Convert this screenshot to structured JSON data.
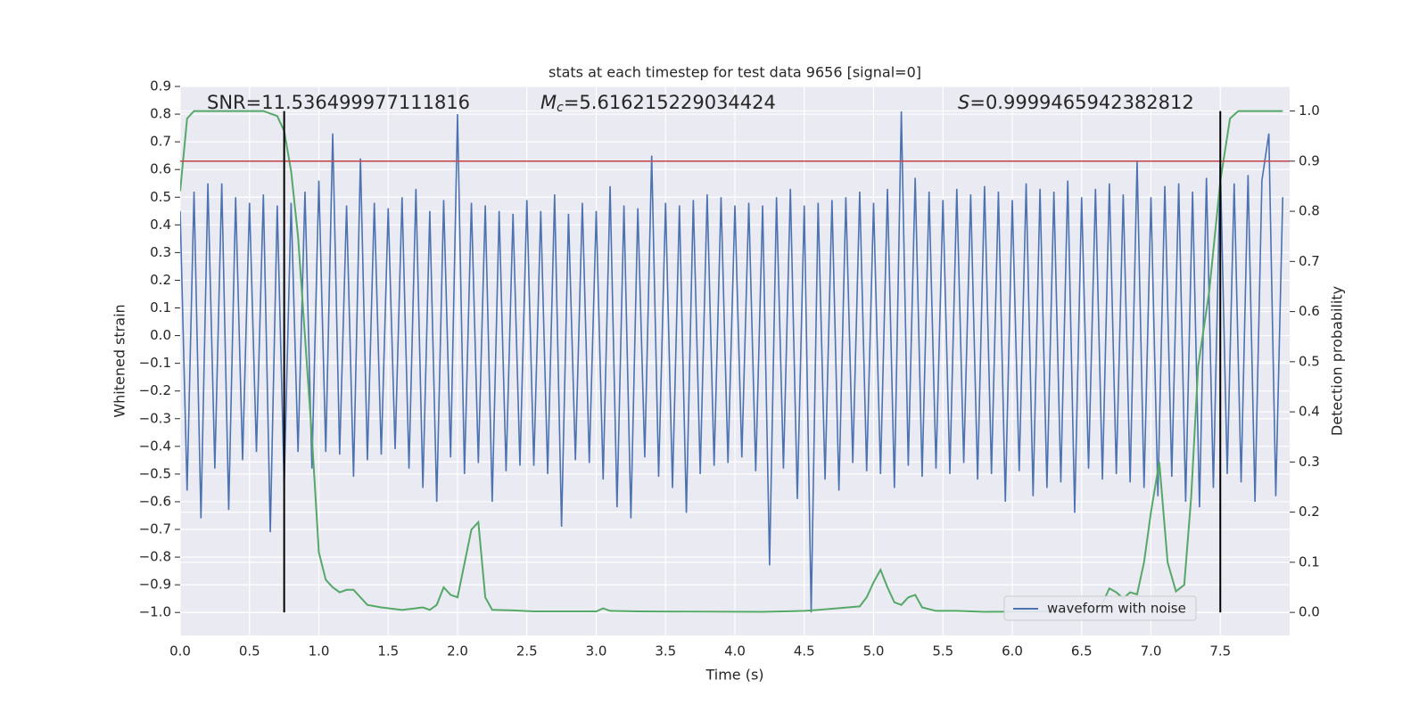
{
  "chart_data": {
    "type": "line",
    "title": "stats at each timestep for test data 9656 [signal=0]",
    "x_label": "Time (s)",
    "y_label": "Whitened strain",
    "y2_label": "Detection probability",
    "xlim": [
      0,
      8
    ],
    "ylim": [
      -1.083,
      0.9
    ],
    "y2lim": [
      -0.046,
      1.049
    ],
    "xticks": [
      {
        "value": 0,
        "label": "0.0"
      },
      0.5,
      {
        "value": 1,
        "label": "1.0"
      },
      1.5,
      {
        "value": 2,
        "label": "2.0"
      },
      2.5,
      {
        "value": 3,
        "label": "3.0"
      },
      3.5,
      {
        "value": 4,
        "label": "4.0"
      },
      4.5,
      {
        "value": 5,
        "label": "5.0"
      },
      5.5,
      {
        "value": 6,
        "label": "6.0"
      },
      6.5,
      {
        "value": 7,
        "label": "7.0"
      },
      7.5
    ],
    "yticks": [
      0.9,
      0.8,
      0.7,
      0.6,
      0.5,
      0.4,
      0.3,
      0.2,
      0.1,
      {
        "value": 0,
        "label": "0.0"
      },
      {
        "value": -0.1,
        "label": "−0.1"
      },
      {
        "value": -0.2,
        "label": "−0.2"
      },
      {
        "value": -0.3,
        "label": "−0.3"
      },
      {
        "value": -0.4,
        "label": "−0.4"
      },
      {
        "value": -0.5,
        "label": "−0.5"
      },
      {
        "value": -0.6,
        "label": "−0.6"
      },
      {
        "value": -0.7,
        "label": "−0.7"
      },
      {
        "value": -0.8,
        "label": "−0.8"
      },
      {
        "value": -0.9,
        "label": "−0.9"
      },
      {
        "value": -1.0,
        "label": "−1.0"
      }
    ],
    "y2ticks": [
      {
        "value": 0,
        "label": "0.0"
      },
      0.1,
      0.2,
      0.3,
      0.4,
      0.5,
      0.6,
      0.7,
      0.8,
      0.9,
      {
        "value": 1,
        "label": "1.0"
      }
    ],
    "grid": true,
    "legend": "lower right",
    "series": [
      {
        "name": "waveform with noise",
        "color": "#4c72b0",
        "x": [
          0,
          0.05,
          0.1,
          0.15,
          0.2,
          0.25,
          0.3,
          0.35,
          0.4,
          0.45,
          0.5,
          0.55,
          0.6,
          0.65,
          0.7,
          0.75,
          0.8,
          0.85,
          0.9,
          0.95,
          1.0,
          1.05,
          1.1,
          1.15,
          1.2,
          1.25,
          1.3,
          1.35,
          1.4,
          1.45,
          1.5,
          1.55,
          1.6,
          1.65,
          1.7,
          1.75,
          1.8,
          1.85,
          1.9,
          1.95,
          2.0,
          2.05,
          2.1,
          2.15,
          2.2,
          2.25,
          2.3,
          2.35,
          2.4,
          2.45,
          2.5,
          2.55,
          2.6,
          2.65,
          2.7,
          2.75,
          2.8,
          2.85,
          2.9,
          2.95,
          3.0,
          3.05,
          3.1,
          3.15,
          3.2,
          3.25,
          3.3,
          3.35,
          3.4,
          3.45,
          3.5,
          3.55,
          3.6,
          3.65,
          3.7,
          3.75,
          3.8,
          3.85,
          3.9,
          3.95,
          4.0,
          4.05,
          4.1,
          4.15,
          4.2,
          4.25,
          4.3,
          4.35,
          4.4,
          4.45,
          4.5,
          4.55,
          4.6,
          4.65,
          4.7,
          4.75,
          4.8,
          4.85,
          4.9,
          4.95,
          5.0,
          5.05,
          5.1,
          5.15,
          5.2,
          5.25,
          5.3,
          5.35,
          5.4,
          5.45,
          5.5,
          5.55,
          5.6,
          5.65,
          5.7,
          5.75,
          5.8,
          5.85,
          5.9,
          5.95,
          6.0,
          6.05,
          6.1,
          6.15,
          6.2,
          6.25,
          6.3,
          6.35,
          6.4,
          6.45,
          6.5,
          6.55,
          6.6,
          6.65,
          6.7,
          6.75,
          6.8,
          6.85,
          6.9,
          6.95,
          7.0,
          7.05,
          7.1,
          7.15,
          7.2,
          7.25,
          7.3,
          7.35,
          7.4,
          7.45,
          7.5,
          7.55,
          7.6,
          7.65,
          7.7,
          7.75,
          7.8,
          7.85,
          7.9,
          7.95
        ],
        "values": [
          0.45,
          -0.56,
          0.52,
          -0.66,
          0.55,
          -0.48,
          0.55,
          -0.63,
          0.5,
          -0.45,
          0.48,
          -0.42,
          0.51,
          -0.71,
          0.47,
          -0.54,
          0.48,
          -0.42,
          0.52,
          -0.48,
          0.56,
          -0.42,
          0.73,
          -0.43,
          0.47,
          -0.51,
          0.64,
          -0.45,
          0.48,
          -0.43,
          0.46,
          -0.41,
          0.5,
          -0.48,
          0.53,
          -0.55,
          0.45,
          -0.6,
          0.49,
          -0.44,
          0.8,
          -0.5,
          0.48,
          -0.46,
          0.47,
          -0.6,
          0.45,
          -0.49,
          0.44,
          -0.47,
          0.49,
          -0.47,
          0.45,
          -0.5,
          0.51,
          -0.69,
          0.44,
          -0.45,
          0.48,
          -0.46,
          0.45,
          -0.52,
          0.54,
          -0.62,
          0.47,
          -0.66,
          0.46,
          -0.44,
          0.65,
          -0.51,
          0.48,
          -0.55,
          0.47,
          -0.64,
          0.49,
          -0.5,
          0.51,
          -0.47,
          0.5,
          -0.46,
          0.47,
          -0.44,
          0.48,
          -0.49,
          0.47,
          -0.83,
          0.5,
          -0.48,
          0.53,
          -0.59,
          0.47,
          -1.0,
          0.48,
          -0.52,
          0.49,
          -0.56,
          0.5,
          -0.46,
          0.52,
          -0.49,
          0.48,
          -0.5,
          0.53,
          -0.55,
          0.81,
          -0.47,
          0.57,
          -0.51,
          0.52,
          -0.48,
          0.49,
          -0.5,
          0.53,
          -0.46,
          0.51,
          -0.52,
          0.54,
          -0.5,
          0.52,
          -0.6,
          0.49,
          -0.49,
          0.55,
          -0.58,
          0.53,
          -0.55,
          0.52,
          -0.53,
          0.56,
          -0.64,
          0.5,
          -0.48,
          0.53,
          -0.52,
          0.55,
          -0.5,
          0.51,
          -0.53,
          0.63,
          -0.55,
          0.5,
          -0.58,
          0.54,
          -0.51,
          0.55,
          -0.6,
          0.52,
          -0.62,
          0.57,
          -0.55,
          0.62,
          -0.5,
          0.55,
          -0.53,
          0.58,
          -0.6,
          0.56,
          0.73,
          -0.58,
          0.5
        ]
      },
      {
        "color": "#55a868",
        "axis": "y2",
        "x": [
          0,
          0.05,
          0.1,
          0.6,
          0.7,
          0.75,
          0.8,
          0.85,
          0.9,
          0.95,
          1.0,
          1.05,
          1.1,
          1.15,
          1.2,
          1.25,
          1.3,
          1.35,
          1.45,
          1.6,
          1.75,
          1.8,
          1.85,
          1.9,
          1.95,
          2.0,
          2.1,
          2.15,
          2.2,
          2.25,
          2.4,
          2.55,
          3.0,
          3.05,
          3.1,
          3.3,
          4.2,
          4.5,
          4.6,
          4.9,
          4.95,
          5.0,
          5.05,
          5.1,
          5.15,
          5.2,
          5.25,
          5.3,
          5.35,
          5.45,
          5.6,
          5.8,
          6.3,
          6.45,
          6.6,
          6.65,
          6.7,
          6.75,
          6.8,
          6.85,
          6.9,
          6.95,
          7.0,
          7.06,
          7.12,
          7.18,
          7.24,
          7.29,
          7.34,
          7.42,
          7.5,
          7.57,
          7.63,
          7.95
        ],
        "values": [
          0.84,
          0.985,
          1.0,
          1.0,
          0.99,
          0.96,
          0.88,
          0.75,
          0.55,
          0.35,
          0.12,
          0.065,
          0.05,
          0.04,
          0.045,
          0.045,
          0.03,
          0.015,
          0.01,
          0.005,
          0.01,
          0.005,
          0.015,
          0.05,
          0.035,
          0.03,
          0.165,
          0.18,
          0.03,
          0.005,
          0.004,
          0.002,
          0.002,
          0.008,
          0.003,
          0.002,
          0.001,
          0.003,
          0.005,
          0.012,
          0.03,
          0.06,
          0.085,
          0.05,
          0.02,
          0.015,
          0.03,
          0.035,
          0.01,
          0.003,
          0.003,
          0.001,
          0.002,
          0.007,
          0.007,
          0.018,
          0.048,
          0.04,
          0.028,
          0.04,
          0.036,
          0.1,
          0.2,
          0.3,
          0.1,
          0.042,
          0.055,
          0.23,
          0.49,
          0.64,
          0.86,
          0.985,
          1.0,
          1.0
        ]
      }
    ],
    "threshold": {
      "y": 0.9,
      "axis": "y2",
      "color": "#c44e52"
    },
    "vlines": [
      {
        "x": 0.75,
        "ymin": 0,
        "ymax": 1,
        "axis": "y2",
        "color": "#000000"
      },
      {
        "x": 7.5,
        "ymin": 0,
        "ymax": 1,
        "axis": "y2",
        "color": "#000000"
      }
    ],
    "annotations": [
      {
        "text": "SNR=11.536499977111816"
      },
      {
        "symbol": "M",
        "subscript": "c",
        "text": "=5.616215229034424"
      },
      {
        "symbol": "S",
        "text": "=0.9999465942382812"
      }
    ]
  }
}
